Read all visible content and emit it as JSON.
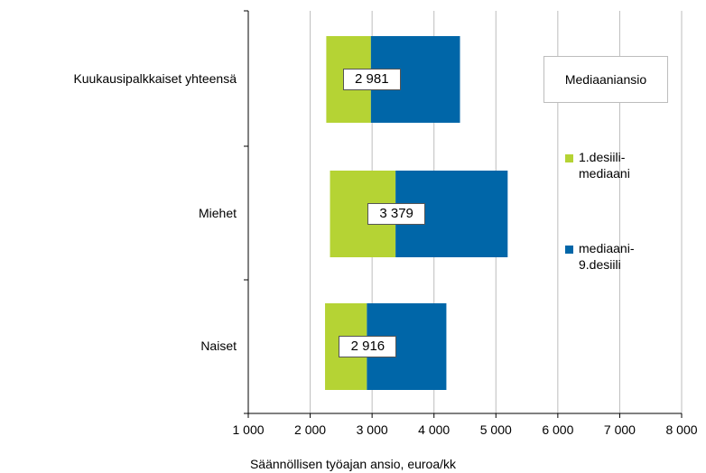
{
  "chart_data": {
    "type": "bar",
    "orientation": "horizontal",
    "stacked": "floating-range",
    "categories": [
      "Kuukausipalkkaiset yhteensä",
      "Miehet",
      "Naiset"
    ],
    "medians": [
      2981,
      3379,
      2916
    ],
    "median_labels": [
      "2 981",
      "3 379",
      "2 916"
    ],
    "series": [
      {
        "name": "1.desiili-\nmediaani",
        "name_lines": [
          "1.desiili-",
          "mediaani"
        ],
        "color": "#b5d334",
        "start": [
          2260,
          2320,
          2240
        ],
        "end": [
          2981,
          3379,
          2916
        ]
      },
      {
        "name": "mediaani-\n9.desiili",
        "name_lines": [
          "mediaani-",
          "9.desiili"
        ],
        "color": "#0066a8",
        "start": [
          2981,
          3379,
          2916
        ],
        "end": [
          4420,
          5190,
          4200
        ]
      }
    ],
    "xlim": [
      1000,
      8000
    ],
    "x_ticks": [
      1000,
      2000,
      3000,
      4000,
      5000,
      6000,
      7000,
      8000
    ],
    "x_tick_labels": [
      "1 000",
      "2 000",
      "3 000",
      "4 000",
      "5 000",
      "6 000",
      "7 000",
      "8 000"
    ],
    "xlabel": "Säännöllisen työajan ansio, euroa/kk",
    "legend_title": "Mediaaniansio",
    "grid": true,
    "legend_position": "right"
  }
}
